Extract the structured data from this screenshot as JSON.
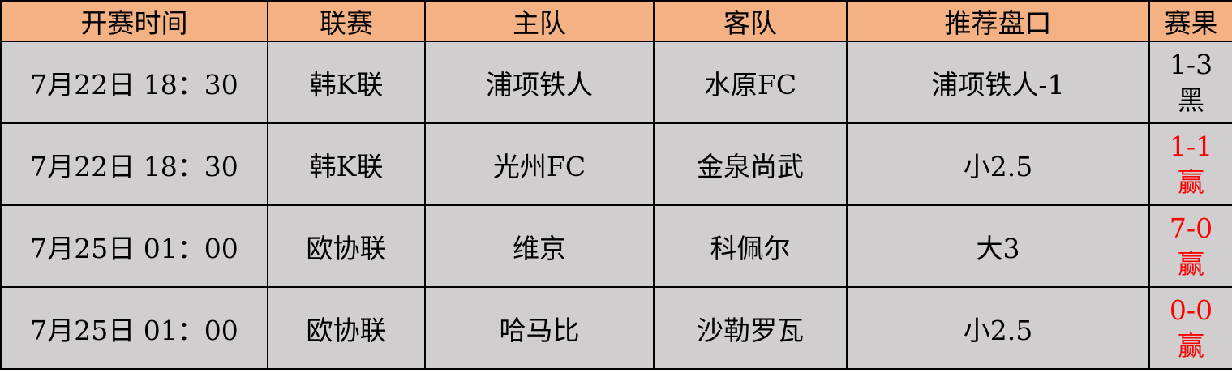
{
  "colors": {
    "header_bg": "#F4B183",
    "body_bg": "#D0CECE",
    "win": "#FF0000",
    "loss": "#000000"
  },
  "headers": [
    "开赛时间",
    "联赛",
    "主队",
    "客队",
    "推荐盘口",
    "赛果"
  ],
  "rows": [
    {
      "time": "7月22日 18：30",
      "league": "韩K联",
      "home": "浦项铁人",
      "away": "水原FC",
      "pick": "浦项铁人-1",
      "score": "1-3",
      "result": "黑",
      "win": false
    },
    {
      "time": "7月22日 18：30",
      "league": "韩K联",
      "home": "光州FC",
      "away": "金泉尚武",
      "pick": "小2.5",
      "score": "1-1",
      "result": "赢",
      "win": true
    },
    {
      "time": "7月25日 01：00",
      "league": "欧协联",
      "home": "维京",
      "away": "科佩尔",
      "pick": "大3",
      "score": "7-0",
      "result": "赢",
      "win": true
    },
    {
      "time": "7月25日 01：00",
      "league": "欧协联",
      "home": "哈马比",
      "away": "沙勒罗瓦",
      "pick": "小2.5",
      "score": "0-0",
      "result": "赢",
      "win": true
    }
  ]
}
